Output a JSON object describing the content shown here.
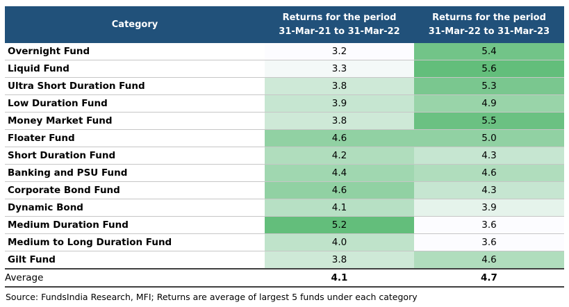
{
  "header": {
    "category_label": "Category",
    "period1": {
      "line1": "Returns for the period",
      "line2": "31-Mar-21 to 31-Mar-22"
    },
    "period2": {
      "line1": "Returns for the period",
      "line2": "31-Mar-22 to 31-Mar-23"
    }
  },
  "chart_data": {
    "type": "table",
    "columns": [
      "Category",
      "Returns for the period 31-Mar-21 to 31-Mar-22",
      "Returns for the period 31-Mar-22 to 31-Mar-23"
    ],
    "categories": [
      "Overnight Fund",
      "Liquid Fund",
      "Ultra Short Duration Fund",
      "Low Duration Fund",
      "Money Market Fund",
      "Floater Fund",
      "Short Duration Fund",
      "Banking and PSU Fund",
      "Corporate Bond Fund",
      "Dynamic Bond",
      "Medium Duration Fund",
      "Medium to Long Duration Fund",
      "Gilt Fund"
    ],
    "series": [
      {
        "name": "Returns for the period 31-Mar-21 to 31-Mar-22",
        "values": [
          3.2,
          3.3,
          3.8,
          3.9,
          3.8,
          4.6,
          4.2,
          4.4,
          4.6,
          4.1,
          5.2,
          4.0,
          3.8
        ]
      },
      {
        "name": "Returns for the period 31-Mar-22 to 31-Mar-23",
        "values": [
          5.4,
          5.6,
          5.3,
          4.9,
          5.5,
          5.0,
          4.3,
          4.6,
          4.3,
          3.9,
          3.6,
          3.6,
          4.6
        ]
      }
    ],
    "color_scale": {
      "start_color": "#fcfcff",
      "end_color": "#63be7b",
      "columns": [
        {
          "min": 3.2,
          "max": 5.2
        },
        {
          "min": 3.6,
          "max": 5.6
        }
      ]
    }
  },
  "average": {
    "label": "Average",
    "v1": "4.1",
    "v2": "4.7"
  },
  "footer": {
    "source": "Source: FundsIndia Research, MFI; Returns are average of largest 5 funds under each category"
  },
  "colors": {
    "header_bg": "#21517a",
    "header_text": "#ffffff",
    "row_divider": "#c6c6c6",
    "thick_divider_top": "#3f3f3f",
    "thick_divider_bottom": "#8c8c8c"
  }
}
